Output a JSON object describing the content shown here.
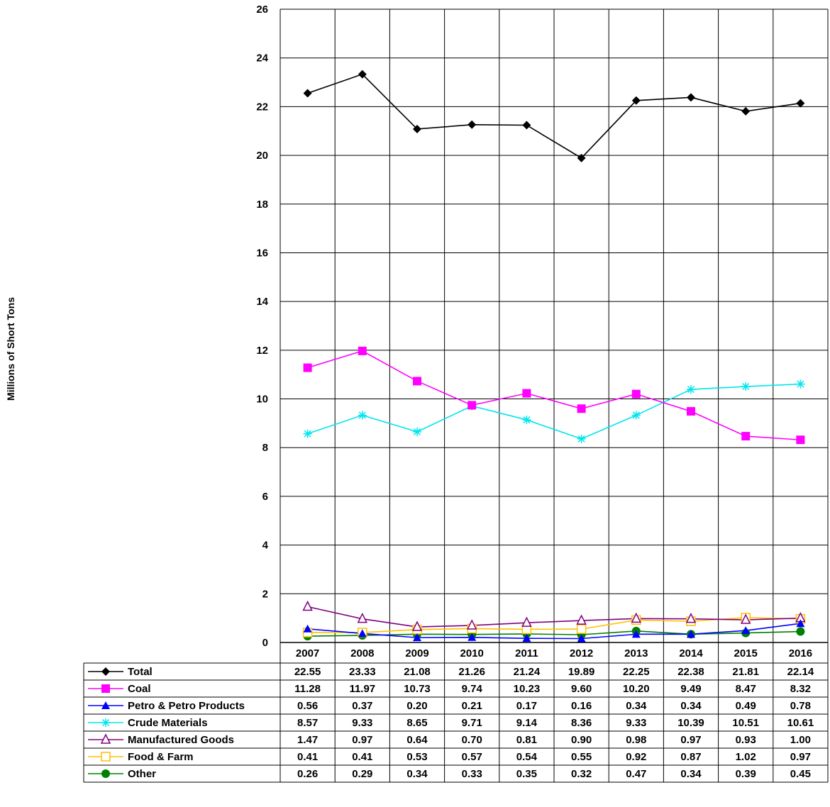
{
  "chart_data": {
    "type": "line",
    "title": "",
    "xlabel": "",
    "ylabel": "Millions of Short Tons",
    "ylim": [
      0,
      26
    ],
    "yticks": [
      0,
      2,
      4,
      6,
      8,
      10,
      12,
      14,
      16,
      18,
      20,
      22,
      24,
      26
    ],
    "grid": true,
    "legend": "data-table-below",
    "categories": [
      "2007",
      "2008",
      "2009",
      "2010",
      "2011",
      "2012",
      "2013",
      "2014",
      "2015",
      "2016"
    ],
    "series": [
      {
        "name": "Total",
        "color": "#000000",
        "marker": "diamond",
        "values": [
          22.55,
          23.33,
          21.08,
          21.26,
          21.24,
          19.89,
          22.25,
          22.38,
          21.81,
          22.14
        ],
        "labels": [
          "22.55",
          "23.33",
          "21.08",
          "21.26",
          "21.24",
          "19.89",
          "22.25",
          "22.38",
          "21.81",
          "22.14"
        ]
      },
      {
        "name": "Coal",
        "color": "#FF00FF",
        "marker": "square",
        "values": [
          11.28,
          11.97,
          10.73,
          9.74,
          10.23,
          9.6,
          10.2,
          9.49,
          8.47,
          8.32
        ],
        "labels": [
          "11.28",
          "11.97",
          "10.73",
          "9.74",
          "10.23",
          "9.60",
          "10.20",
          "9.49",
          "8.47",
          "8.32"
        ]
      },
      {
        "name": "Petro & Petro Products",
        "color": "#0000FF",
        "marker": "triangle",
        "values": [
          0.56,
          0.37,
          0.2,
          0.21,
          0.17,
          0.16,
          0.34,
          0.34,
          0.49,
          0.78
        ],
        "labels": [
          "0.56",
          "0.37",
          "0.20",
          "0.21",
          "0.17",
          "0.16",
          "0.34",
          "0.34",
          "0.49",
          "0.78"
        ]
      },
      {
        "name": "Crude Materials",
        "color": "#00E5EE",
        "marker": "asterisk",
        "values": [
          8.57,
          9.33,
          8.65,
          9.71,
          9.14,
          8.36,
          9.33,
          10.39,
          10.51,
          10.61
        ],
        "labels": [
          "8.57",
          "9.33",
          "8.65",
          "9.71",
          "9.14",
          "8.36",
          "9.33",
          "10.39",
          "10.51",
          "10.61"
        ]
      },
      {
        "name": "Manufactured Goods",
        "color": "#800080",
        "marker": "triangle-open",
        "values": [
          1.47,
          0.97,
          0.64,
          0.7,
          0.81,
          0.9,
          0.98,
          0.97,
          0.93,
          1.0
        ],
        "labels": [
          "1.47",
          "0.97",
          "0.64",
          "0.70",
          "0.81",
          "0.90",
          "0.98",
          "0.97",
          "0.93",
          "1.00"
        ]
      },
      {
        "name": "Food & Farm",
        "color": "#FFC000",
        "marker": "square-open",
        "values": [
          0.41,
          0.41,
          0.53,
          0.57,
          0.54,
          0.55,
          0.92,
          0.87,
          1.02,
          0.97
        ],
        "labels": [
          "0.41",
          "0.41",
          "0.53",
          "0.57",
          "0.54",
          "0.55",
          "0.92",
          "0.87",
          "1.02",
          "0.97"
        ]
      },
      {
        "name": "Other",
        "color": "#008000",
        "marker": "circle",
        "values": [
          0.26,
          0.29,
          0.34,
          0.33,
          0.35,
          0.32,
          0.47,
          0.34,
          0.39,
          0.45
        ],
        "labels": [
          "0.26",
          "0.29",
          "0.34",
          "0.33",
          "0.35",
          "0.32",
          "0.47",
          "0.34",
          "0.39",
          "0.45"
        ]
      }
    ]
  }
}
